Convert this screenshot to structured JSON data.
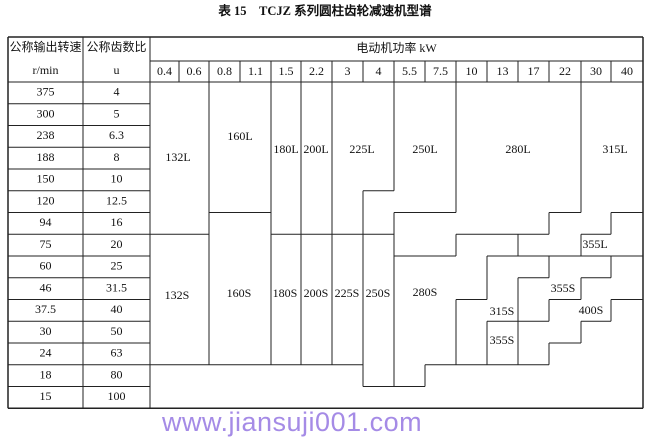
{
  "title": "表 15　TCJZ 系列圆柱齿轮减速机型谱",
  "header": {
    "speed_label": "公称输出转速",
    "speed_unit": "r/min",
    "ratio_label": "公称齿数比",
    "ratio_unit": "u",
    "power_label": "电动机功率 kW"
  },
  "powers": [
    "0.4",
    "0.6",
    "0.8",
    "1.1",
    "1.5",
    "2.2",
    "3",
    "4",
    "5.5",
    "7.5",
    "10",
    "13",
    "17",
    "22",
    "30",
    "40"
  ],
  "rows": [
    {
      "speed": "375",
      "ratio": "4"
    },
    {
      "speed": "300",
      "ratio": "5"
    },
    {
      "speed": "238",
      "ratio": "6.3"
    },
    {
      "speed": "188",
      "ratio": "8"
    },
    {
      "speed": "150",
      "ratio": "10"
    },
    {
      "speed": "120",
      "ratio": "12.5"
    },
    {
      "speed": "94",
      "ratio": "16"
    },
    {
      "speed": "75",
      "ratio": "20"
    },
    {
      "speed": "60",
      "ratio": "25"
    },
    {
      "speed": "46",
      "ratio": "31.5"
    },
    {
      "speed": "37.5",
      "ratio": "40"
    },
    {
      "speed": "30",
      "ratio": "50"
    },
    {
      "speed": "24",
      "ratio": "63"
    },
    {
      "speed": "18",
      "ratio": "80"
    },
    {
      "speed": "15",
      "ratio": "100"
    }
  ],
  "models": [
    "132L",
    "160L",
    "180L",
    "200L",
    "225L",
    "250L",
    "280L",
    "315L",
    "355L",
    "132S",
    "160S",
    "180S",
    "200S",
    "225S",
    "250S",
    "280S",
    "315S",
    "355S",
    "355S",
    "400S"
  ],
  "watermark": "www.jiansuji001.com",
  "colors": {
    "lines": "#222222",
    "watermark": "#a58be6"
  }
}
